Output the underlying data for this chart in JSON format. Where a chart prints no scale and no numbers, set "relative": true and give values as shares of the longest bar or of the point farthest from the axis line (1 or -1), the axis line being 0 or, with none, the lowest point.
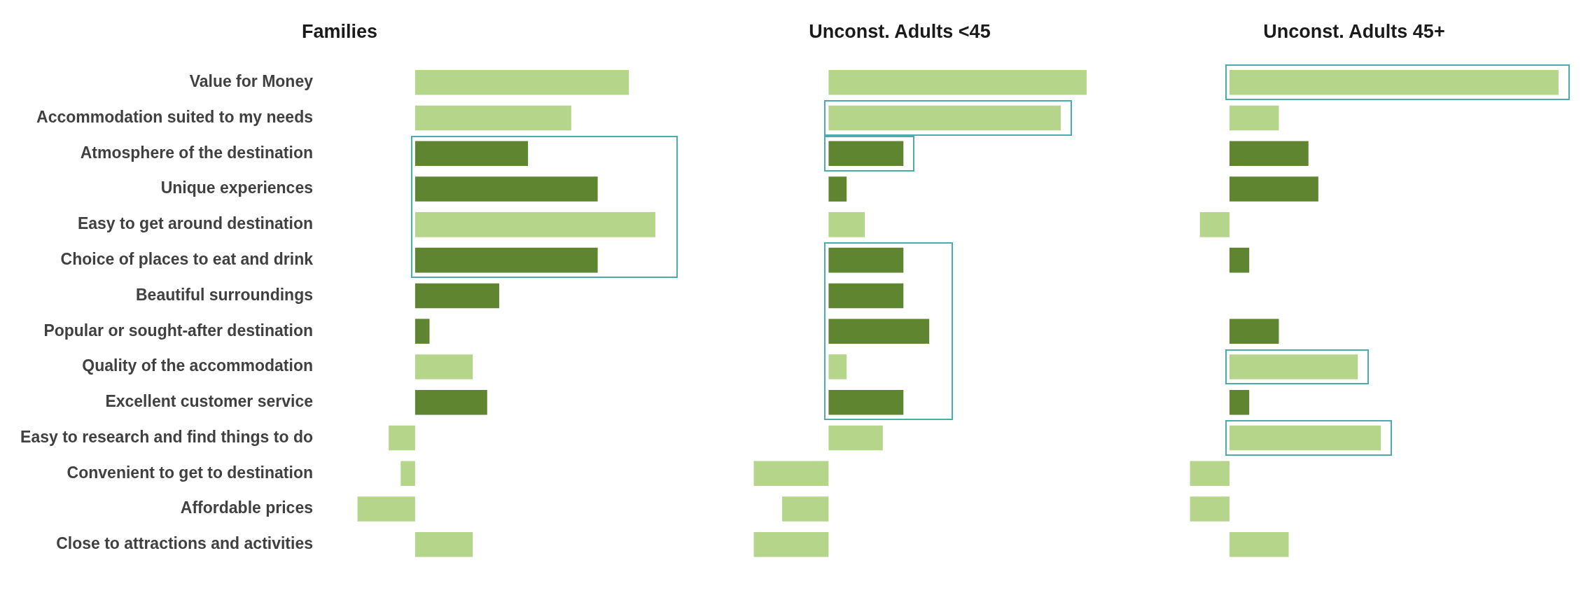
{
  "chart_data": [
    {
      "type": "bar",
      "orientation": "horizontal",
      "relative": true,
      "title": "Families",
      "legend": false,
      "categories": [
        "Value for Money",
        "Accommodation suited to my needs",
        "Atmosphere of the destination",
        "Unique experiences",
        "Easy to get around destination",
        "Choice of places to eat and drink",
        "Beautiful surroundings",
        "Popular or sought-after destination",
        "Quality of the accommodation",
        "Excellent customer service",
        "Easy to research and find things to do",
        "Convenient to get to destination",
        "Affordable prices",
        "Close to attractions and activities"
      ],
      "values": [
        0.89,
        0.65,
        0.47,
        0.76,
        1,
        0.76,
        0.35,
        0.06,
        0.24,
        0.3,
        -0.11,
        -0.06,
        -0.24,
        0.24
      ],
      "colors": [
        "#b5d68a",
        "#b5d68a",
        "#5f8530",
        "#5f8530",
        "#b5d68a",
        "#5f8530",
        "#5f8530",
        "#5f8530",
        "#b5d68a",
        "#5f8530",
        "#b5d68a",
        "#b5d68a",
        "#b5d68a",
        "#b5d68a"
      ]
    },
    {
      "type": "bar",
      "orientation": "horizontal",
      "relative": true,
      "title": "Unconst. Adults <45",
      "legend": false,
      "categories": [
        null,
        null,
        null,
        null,
        null,
        null,
        null,
        null,
        null,
        null,
        null,
        null,
        null,
        null
      ],
      "values": [
        1,
        0.9,
        0.29,
        0.07,
        0.14,
        0.29,
        0.29,
        0.39,
        0.07,
        0.29,
        0.21,
        -0.29,
        -0.18,
        -0.29
      ],
      "colors": [
        "#b5d68a",
        "#b5d68a",
        "#5f8530",
        "#5f8530",
        "#b5d68a",
        "#5f8530",
        "#5f8530",
        "#5f8530",
        "#b5d68a",
        "#5f8530",
        "#b5d68a",
        "#b5d68a",
        "#b5d68a",
        "#b5d68a"
      ]
    },
    {
      "type": "bar",
      "orientation": "horizontal",
      "relative": true,
      "title": "Unconst. Adults 45+",
      "legend": false,
      "categories": [
        null,
        null,
        null,
        null,
        null,
        null,
        null,
        null,
        null,
        null,
        null,
        null,
        null,
        null
      ],
      "values": [
        1,
        0.15,
        0.24,
        0.27,
        -0.09,
        0.06,
        0,
        0.15,
        0.39,
        0.06,
        0.46,
        -0.12,
        -0.12,
        0.18
      ],
      "colors": [
        "#b5d68a",
        "#b5d68a",
        "#5f8530",
        "#5f8530",
        "#b5d68a",
        "#5f8530",
        "#5f8530",
        "#5f8530",
        "#b5d68a",
        "#5f8530",
        "#b5d68a",
        "#b5d68a",
        "#b5d68a",
        "#b5d68a"
      ]
    }
  ]
}
